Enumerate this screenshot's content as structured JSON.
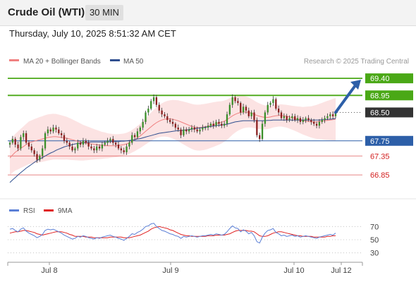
{
  "header": {
    "title": "Crude Oil (WTI)",
    "timeframe": "30 MIN",
    "datetime": "Thursday, July 10, 2025 8:51:32 AM CET"
  },
  "chart_data": {
    "type": "candlestick",
    "legend": [
      {
        "name": "MA 20 + Bollinger Bands",
        "color": "#f08080"
      },
      {
        "name": "MA 50",
        "color": "#2f4f8f"
      }
    ],
    "source": "Research © 2025 Trading Central",
    "x_labels": [
      "Jul 8",
      "Jul 9",
      "Jul 10",
      "Jul 12"
    ],
    "levels": [
      {
        "value": 69.4,
        "label": "69.40",
        "color": "#4aa816",
        "kind": "resistance"
      },
      {
        "value": 68.95,
        "label": "68.95",
        "color": "#4aa816",
        "kind": "resistance"
      },
      {
        "value": 68.5,
        "label": "68.50",
        "color": "#333333",
        "kind": "last"
      },
      {
        "value": 67.75,
        "label": "67.75",
        "color": "#2d5fa8",
        "kind": "pivot"
      },
      {
        "value": 67.35,
        "label": "67.35",
        "color": "#d32020",
        "kind": "support"
      },
      {
        "value": 66.85,
        "label": "66.85",
        "color": "#d32020",
        "kind": "support"
      }
    ],
    "close": [
      67.7,
      67.8,
      67.65,
      67.55,
      67.85,
      67.95,
      67.7,
      67.6,
      67.5,
      67.4,
      67.25,
      67.35,
      67.55,
      67.95,
      68.05,
      68.0,
      68.1,
      68.05,
      67.95,
      67.9,
      67.75,
      67.7,
      67.6,
      67.5,
      67.55,
      67.7,
      67.65,
      67.75,
      67.7,
      67.6,
      67.55,
      67.5,
      67.6,
      67.55,
      67.65,
      67.7,
      67.75,
      67.8,
      67.7,
      67.65,
      67.55,
      67.5,
      67.45,
      67.6,
      67.7,
      67.9,
      67.85,
      68.0,
      68.1,
      68.25,
      68.5,
      68.6,
      68.8,
      68.9,
      68.7,
      68.55,
      68.45,
      68.4,
      68.3,
      68.25,
      68.2,
      68.1,
      68.05,
      67.9,
      68.05,
      68.0,
      68.05,
      68.1,
      68.05,
      68.0,
      68.05,
      68.1,
      68.1,
      68.15,
      68.2,
      68.15,
      68.25,
      68.2,
      68.15,
      68.2,
      68.45,
      68.7,
      68.9,
      68.8,
      68.75,
      68.5,
      68.65,
      68.55,
      68.4,
      68.5,
      68.3,
      67.9,
      67.8,
      68.2,
      68.5,
      68.7,
      68.75,
      68.85,
      68.6,
      68.5,
      68.35,
      68.4,
      68.3,
      68.35,
      68.4,
      68.3,
      68.35,
      68.25,
      68.3,
      68.35,
      68.3,
      68.25,
      68.2,
      68.15,
      68.25,
      68.3,
      68.35,
      68.4,
      68.45,
      68.4,
      68.5
    ],
    "ma20": [
      67.3,
      67.38,
      67.45,
      67.5,
      67.55,
      67.6,
      67.65,
      67.7,
      67.72,
      67.74,
      67.76,
      67.78,
      67.8,
      67.82,
      67.84,
      67.85,
      67.86,
      67.86,
      67.85,
      67.84,
      67.83,
      67.82,
      67.8,
      67.78,
      67.76,
      67.74,
      67.72,
      67.7,
      67.69,
      67.68,
      67.67,
      67.66,
      67.65,
      67.64,
      67.63,
      67.63,
      67.62,
      67.62,
      67.62,
      67.62,
      67.63,
      67.64,
      67.65,
      67.67,
      67.7,
      67.74,
      67.78,
      67.83,
      67.88,
      67.94,
      68.0,
      68.06,
      68.12,
      68.18,
      68.23,
      68.27,
      68.3,
      68.32,
      68.33,
      68.33,
      68.32,
      68.3,
      68.28,
      68.25,
      68.22,
      68.19,
      68.16,
      68.13,
      68.11,
      68.1,
      68.1,
      68.11,
      68.12,
      68.14,
      68.16,
      68.18,
      68.2,
      68.22,
      68.24,
      68.27,
      68.31,
      68.36,
      68.41,
      68.45,
      68.48,
      68.5,
      68.51,
      68.51,
      68.5,
      68.48,
      68.45,
      68.42,
      68.4,
      68.38,
      68.37,
      68.37,
      68.38,
      68.4,
      68.41,
      68.42,
      68.42,
      68.41,
      68.4,
      68.38,
      68.36,
      68.34,
      68.32,
      68.3,
      68.28,
      68.27,
      68.26,
      68.25,
      68.25,
      68.25,
      68.26,
      68.27,
      68.28,
      68.29,
      68.3,
      68.31,
      68.32
    ],
    "ma50": [
      66.65,
      66.72,
      66.78,
      66.85,
      66.91,
      66.97,
      67.03,
      67.08,
      67.13,
      67.18,
      67.23,
      67.27,
      67.31,
      67.35,
      67.39,
      67.43,
      67.46,
      67.5,
      67.53,
      67.56,
      67.59,
      67.61,
      67.63,
      67.65,
      67.67,
      67.68,
      67.69,
      67.7,
      67.71,
      67.71,
      67.72,
      67.72,
      67.72,
      67.72,
      67.72,
      67.72,
      67.72,
      67.73,
      67.73,
      67.73,
      67.73,
      67.74,
      67.74,
      67.75,
      67.76,
      67.77,
      67.78,
      67.8,
      67.81,
      67.83,
      67.85,
      67.87,
      67.89,
      67.91,
      67.93,
      67.95,
      67.96,
      67.97,
      67.98,
      67.99,
      68.0,
      68.01,
      68.02,
      68.02,
      68.03,
      68.04,
      68.05,
      68.06,
      68.07,
      68.08,
      68.09,
      68.1,
      68.11,
      68.12,
      68.13,
      68.14,
      68.15,
      68.16,
      68.17,
      68.18,
      68.19,
      68.21,
      68.23,
      68.25,
      68.26,
      68.27,
      68.28,
      68.28,
      68.28,
      68.28,
      68.28,
      68.28,
      68.28,
      68.28,
      68.28,
      68.29,
      68.29,
      68.3,
      68.3,
      68.3,
      68.3,
      68.3,
      68.3,
      68.3,
      68.3,
      68.3,
      68.3,
      68.3,
      68.3,
      68.3,
      68.3,
      68.3,
      68.3,
      68.3,
      68.3,
      68.31,
      68.31,
      68.32,
      68.32,
      68.33,
      68.34
    ],
    "bb_width": 0.45,
    "y_range": [
      66.35,
      69.7
    ],
    "rsi": {
      "legend": [
        {
          "name": "RSI",
          "color": "#5a7fd6"
        },
        {
          "name": "9MA",
          "color": "#e02020"
        }
      ],
      "ticks": [
        70,
        50,
        30
      ],
      "y_range": [
        20,
        80
      ],
      "rsi": [
        66,
        67,
        64,
        62,
        66,
        68,
        63,
        60,
        58,
        56,
        53,
        55,
        58,
        64,
        66,
        65,
        66,
        64,
        62,
        60,
        57,
        55,
        53,
        51,
        52,
        55,
        54,
        56,
        55,
        53,
        52,
        51,
        53,
        52,
        54,
        55,
        56,
        57,
        55,
        54,
        52,
        51,
        49,
        52,
        55,
        59,
        58,
        61,
        63,
        66,
        70,
        71,
        74,
        75,
        70,
        67,
        64,
        63,
        61,
        59,
        58,
        56,
        55,
        52,
        55,
        54,
        55,
        56,
        55,
        54,
        55,
        56,
        56,
        57,
        58,
        57,
        59,
        58,
        57,
        58,
        62,
        67,
        71,
        68,
        67,
        62,
        65,
        63,
        59,
        61,
        56,
        47,
        45,
        54,
        60,
        64,
        65,
        67,
        61,
        59,
        56,
        57,
        55,
        56,
        57,
        55,
        56,
        54,
        55,
        56,
        55,
        54,
        53,
        52,
        54,
        55,
        56,
        57,
        58,
        57,
        60
      ],
      "ma9": [
        60,
        61,
        62,
        62,
        63,
        64,
        64,
        63,
        62,
        61,
        59,
        58,
        57,
        58,
        59,
        60,
        61,
        62,
        62,
        62,
        61,
        60,
        58,
        57,
        55,
        55,
        55,
        55,
        54,
        54,
        54,
        53,
        53,
        53,
        53,
        53,
        53,
        54,
        54,
        54,
        54,
        54,
        53,
        53,
        53,
        54,
        55,
        56,
        57,
        59,
        61,
        63,
        66,
        68,
        69,
        70,
        69,
        68,
        67,
        65,
        64,
        62,
        60,
        58,
        57,
        56,
        56,
        55,
        55,
        55,
        55,
        55,
        55,
        56,
        56,
        56,
        57,
        57,
        57,
        57,
        58,
        59,
        61,
        63,
        64,
        64,
        64,
        64,
        63,
        63,
        62,
        59,
        56,
        55,
        55,
        56,
        58,
        60,
        61,
        62,
        62,
        61,
        60,
        59,
        58,
        57,
        56,
        56,
        55,
        55,
        55,
        55,
        54,
        54,
        54,
        54,
        54,
        55,
        55,
        56,
        56
      ]
    }
  }
}
